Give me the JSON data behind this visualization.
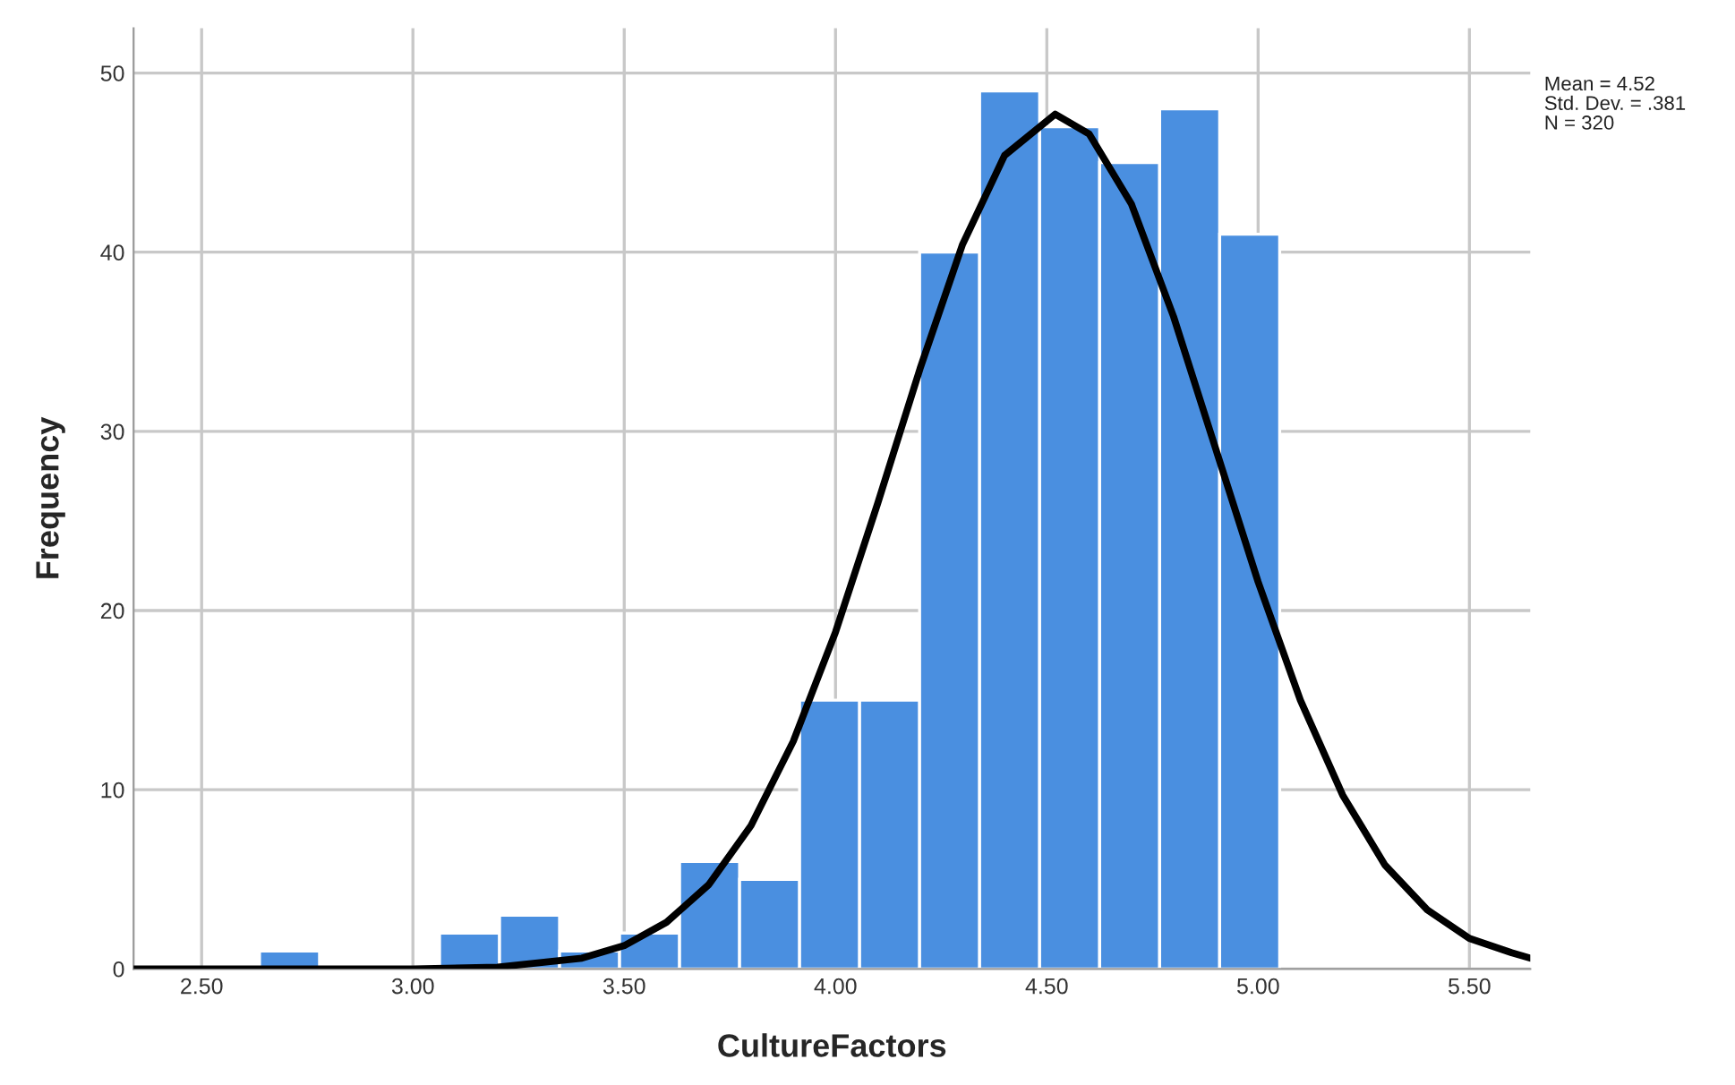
{
  "chart_data": {
    "type": "histogram",
    "xlabel": "CultureFactors",
    "ylabel": "Frequency",
    "bins": [
      2.637,
      2.779,
      2.921,
      3.063,
      3.205,
      3.347,
      3.489,
      3.631,
      3.773,
      3.915,
      4.057,
      4.199,
      4.341,
      4.483,
      4.625,
      4.767,
      4.909,
      5.051
    ],
    "values": [
      1,
      0,
      0,
      2,
      3,
      1,
      2,
      6,
      5,
      15,
      15,
      40,
      49,
      47,
      45,
      48,
      41
    ],
    "color": "#4a8fe0",
    "series": [
      {
        "type": "line",
        "color": "#000000",
        "x": [
          2.34,
          2.6,
          3.0,
          3.2,
          3.4,
          3.5,
          3.6,
          3.7,
          3.8,
          3.9,
          4.0,
          4.1,
          4.2,
          4.3,
          4.4,
          4.52,
          4.6,
          4.7,
          4.8,
          4.9,
          5.0,
          5.1,
          5.2,
          5.3,
          5.4,
          5.5,
          5.6,
          5.644
        ],
        "values": [
          0,
          0,
          0,
          0.1,
          0.6,
          1.3,
          2.6,
          4.7,
          8.0,
          12.7,
          18.8,
          26.0,
          33.5,
          40.4,
          45.4,
          47.7,
          46.6,
          42.7,
          36.4,
          29.0,
          21.6,
          15.0,
          9.7,
          5.8,
          3.3,
          1.7,
          0.9,
          0.6
        ]
      }
    ],
    "xlim": [
      2.339,
      5.644
    ],
    "xticks": [
      {
        "value": 2.5,
        "label": "2.50"
      },
      {
        "value": 3.0,
        "label": "3.00"
      },
      {
        "value": 3.5,
        "label": "3.50"
      },
      {
        "value": 4.0,
        "label": "4.00"
      },
      {
        "value": 4.5,
        "label": "4.50"
      },
      {
        "value": 5.0,
        "label": "5.00"
      },
      {
        "value": 5.5,
        "label": "5.50"
      }
    ],
    "ylim": [
      0,
      52.5
    ],
    "yticks": [
      0,
      10,
      20,
      30,
      40,
      50
    ],
    "grid": true,
    "annotations": [
      "Mean = 4.52",
      "Std. Dev. = .381",
      "N = 320"
    ]
  }
}
